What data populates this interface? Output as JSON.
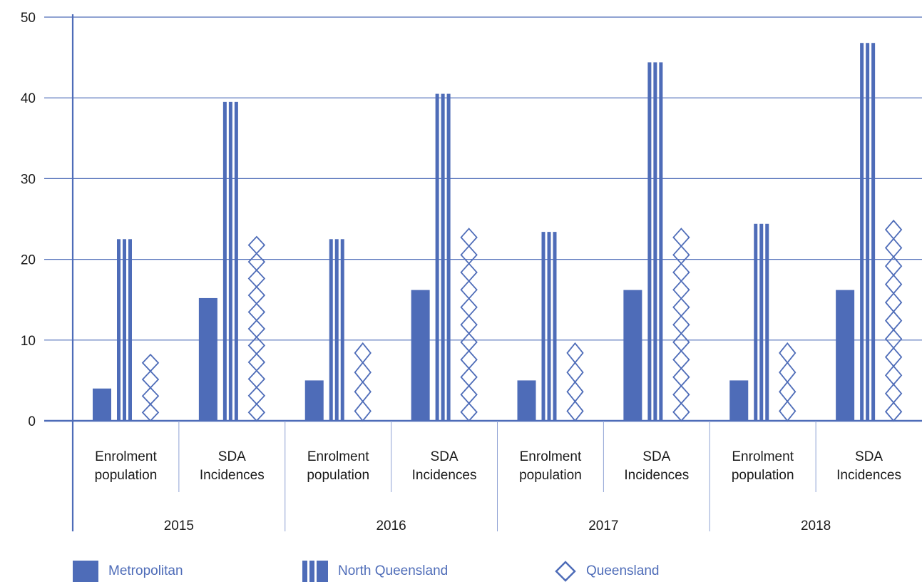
{
  "chart_data": {
    "type": "bar",
    "groups": [
      "2015",
      "2016",
      "2017",
      "2018"
    ],
    "subcategories": [
      [
        "Enrolment",
        "population"
      ],
      [
        "SDA",
        "Incidences"
      ]
    ],
    "categories": [
      "2015 Enrolment population",
      "2015 SDA Incidences",
      "2016 Enrolment population",
      "2016 SDA Incidences",
      "2017 Enrolment population",
      "2017 SDA Incidences",
      "2018 Enrolment population",
      "2018 SDA Incidences"
    ],
    "series": [
      {
        "name": "Metropolitan",
        "values": [
          4,
          15.2,
          5,
          16.2,
          5,
          16.2,
          5,
          16.2
        ]
      },
      {
        "name": "North Queensland",
        "values": [
          22.5,
          39.5,
          22.5,
          40.5,
          23.4,
          44.4,
          24.4,
          46.8
        ]
      },
      {
        "name": "Queensland",
        "values": [
          8.2,
          22.8,
          9.6,
          23.8,
          9.6,
          23.8,
          9.6,
          24.8
        ]
      }
    ],
    "yticks": [
      "0",
      "10",
      "20",
      "30",
      "40",
      "50"
    ],
    "ylim": [
      0,
      50
    ],
    "grid": true,
    "legend_position": "bottom",
    "colors": {
      "bar": "#4e6cb8",
      "grid": "#4e6cb8",
      "text": "#1a1a1a",
      "legend_text": "#4e6cb8"
    }
  }
}
